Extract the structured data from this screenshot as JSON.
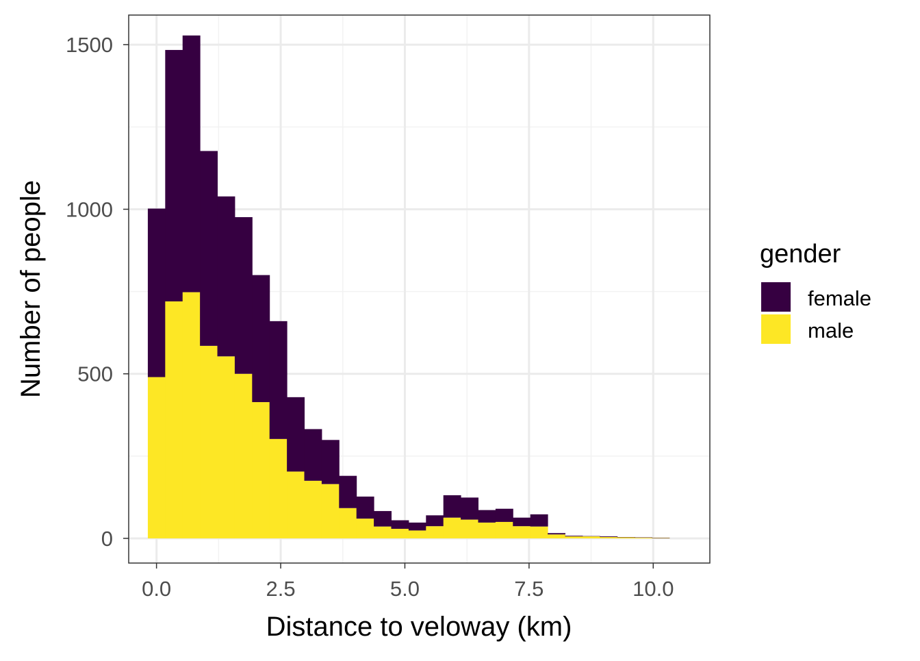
{
  "chart_data": {
    "type": "bar",
    "stacked": true,
    "xlabel": "Distance to veloway (km)",
    "ylabel": "Number of people",
    "xlim": [
      -0.56,
      11.14
    ],
    "ylim": [
      -75,
      1590
    ],
    "x_ticks": [
      0.0,
      2.5,
      5.0,
      7.5,
      10.0
    ],
    "x_tick_labels": [
      "0.0",
      "2.5",
      "5.0",
      "7.5",
      "10.0"
    ],
    "y_ticks": [
      0,
      500,
      1000,
      1500
    ],
    "y_tick_labels": [
      "0",
      "500",
      "1000",
      "1500"
    ],
    "grid": true,
    "bin_width": 0.35,
    "x": [
      0.0,
      0.35,
      0.7,
      1.05,
      1.4,
      1.75,
      2.1,
      2.45,
      2.8,
      3.15,
      3.5,
      3.85,
      4.2,
      4.55,
      4.9,
      5.25,
      5.6,
      5.95,
      6.3,
      6.65,
      7.0,
      7.35,
      7.7,
      8.05,
      8.4,
      8.75,
      9.1,
      9.45,
      9.8,
      10.15
    ],
    "series": [
      {
        "name": "male",
        "color": "#FDE725",
        "values": [
          490,
          720,
          748,
          585,
          553,
          500,
          414,
          302,
          203,
          175,
          165,
          92,
          60,
          36,
          29,
          24,
          37,
          63,
          57,
          48,
          50,
          37,
          36,
          12,
          6,
          6,
          4,
          3,
          2,
          1
        ]
      },
      {
        "name": "female",
        "color": "#360041",
        "values": [
          512,
          764,
          780,
          592,
          486,
          476,
          386,
          358,
          226,
          157,
          134,
          98,
          67,
          47,
          26,
          24,
          33,
          68,
          67,
          38,
          40,
          26,
          37,
          4,
          2,
          1,
          2,
          1,
          1,
          1
        ]
      }
    ],
    "legend": {
      "title": "gender",
      "position": "right",
      "items": [
        "female",
        "male"
      ]
    },
    "colors": {
      "background": "#FFFFFF",
      "panel_border": "#333333",
      "grid_major": "#EBEBEB",
      "grid_minor": "#F2F2F2",
      "tick_text": "#4D4D4D",
      "title_text": "#000000"
    }
  }
}
